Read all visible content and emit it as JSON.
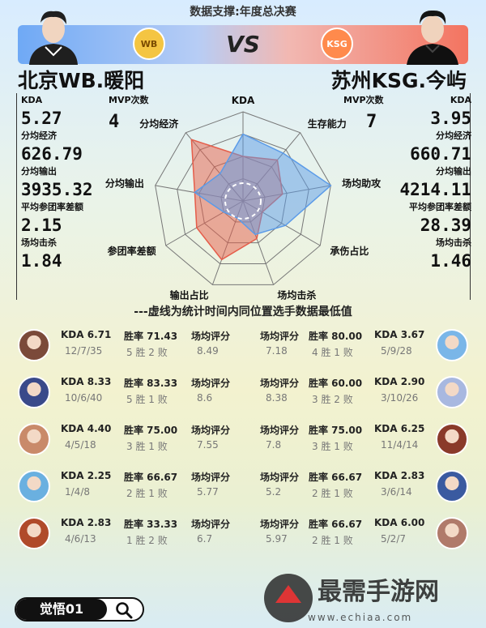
{
  "header": {
    "title": "数据支撑:年度总决赛",
    "vs": "VS"
  },
  "colors": {
    "left": "#5b9be8",
    "right": "#e55d4a"
  },
  "left_team": {
    "name": "北京WB.暖阳",
    "logo_text": "WB",
    "mvp_label": "MVP次数",
    "mvp": "4",
    "stats": [
      {
        "label": "KDA",
        "value": "5.27"
      },
      {
        "label": "分均经济",
        "value": "626.79"
      },
      {
        "label": "分均输出",
        "value": "3935.32"
      },
      {
        "label": "平均参团率差额",
        "value": "2.15"
      },
      {
        "label": "场均击杀",
        "value": "1.84"
      }
    ]
  },
  "right_team": {
    "name": "苏州KSG.今屿",
    "logo_text": "KSG",
    "mvp_label": "MVP次数",
    "mvp": "7",
    "stats": [
      {
        "label": "KDA",
        "value": "3.95"
      },
      {
        "label": "分均经济",
        "value": "660.71"
      },
      {
        "label": "分均输出",
        "value": "4214.11"
      },
      {
        "label": "平均参团率差额",
        "value": "28.39"
      },
      {
        "label": "场均击杀",
        "value": "1.46"
      }
    ]
  },
  "chart_data": {
    "type": "radar",
    "axes": [
      "KDA",
      "生存能力",
      "场均助攻",
      "承伤占比",
      "场均击杀",
      "输出占比",
      "参团率差额",
      "分均输出",
      "分均经济"
    ],
    "series": [
      {
        "values": [
          0.5,
          0.6,
          0.45,
          0.25,
          0.45,
          0.7,
          0.6,
          0.55,
          0.9
        ]
      },
      {
        "values": [
          0.75,
          0.7,
          1.0,
          0.55,
          0.4,
          0.2,
          0.25,
          0.55,
          0.4
        ]
      }
    ],
    "min_ring": 0.2
  },
  "note": "---虚线为统计时间内同位置选手数据最低值",
  "matchups": [
    {
      "l_kda": "KDA 6.71",
      "l_win": "胜率 71.43",
      "l_score_label": "场均评分",
      "l_kda_detail": "12/7/35",
      "l_record": "5 胜 2 败",
      "l_score": "8.49",
      "r_score_label": "场均评分",
      "r_win": "胜率 80.00",
      "r_kda": "KDA 3.67",
      "r_score": "7.18",
      "r_record": "4 胜 1 败",
      "r_kda_detail": "5/9/28"
    },
    {
      "l_kda": "KDA 8.33",
      "l_win": "胜率 83.33",
      "l_score_label": "场均评分",
      "l_kda_detail": "10/6/40",
      "l_record": "5 胜 1 败",
      "l_score": "8.6",
      "r_score_label": "场均评分",
      "r_win": "胜率 60.00",
      "r_kda": "KDA 2.90",
      "r_score": "8.38",
      "r_record": "3 胜 2 败",
      "r_kda_detail": "3/10/26"
    },
    {
      "l_kda": "KDA 4.40",
      "l_win": "胜率 75.00",
      "l_score_label": "场均评分",
      "l_kda_detail": "4/5/18",
      "l_record": "3 胜 1 败",
      "l_score": "7.55",
      "r_score_label": "场均评分",
      "r_win": "胜率 75.00",
      "r_kda": "KDA 6.25",
      "r_score": "7.8",
      "r_record": "3 胜 1 败",
      "r_kda_detail": "11/4/14"
    },
    {
      "l_kda": "KDA 2.25",
      "l_win": "胜率 66.67",
      "l_score_label": "场均评分",
      "l_kda_detail": "1/4/8",
      "l_record": "2 胜 1 败",
      "l_score": "5.77",
      "r_score_label": "场均评分",
      "r_win": "胜率 66.67",
      "r_kda": "KDA 2.83",
      "r_score": "5.2",
      "r_record": "2 胜 1 败",
      "r_kda_detail": "3/6/14"
    },
    {
      "l_kda": "KDA 2.83",
      "l_win": "胜率 33.33",
      "l_score_label": "场均评分",
      "l_kda_detail": "4/6/13",
      "l_record": "1 胜 2 败",
      "l_score": "6.7",
      "r_score_label": "场均评分",
      "r_win": "胜率 66.67",
      "r_kda": "KDA 6.00",
      "r_score": "5.97",
      "r_record": "2 胜 1 败",
      "r_kda_detail": "5/2/7"
    }
  ],
  "avatar_colors": [
    "#7b4a3a",
    "#7ab6e8",
    "#3a4a8a",
    "#a8b8e0",
    "#c98a6a",
    "#8a3a2a",
    "#6ab0e0",
    "#3a5aa0",
    "#b04a2a",
    "#b07a6a"
  ],
  "search": {
    "label": "觉悟01"
  },
  "watermark": {
    "line1": "最需手游网",
    "line2": "www.echiaa.com"
  }
}
